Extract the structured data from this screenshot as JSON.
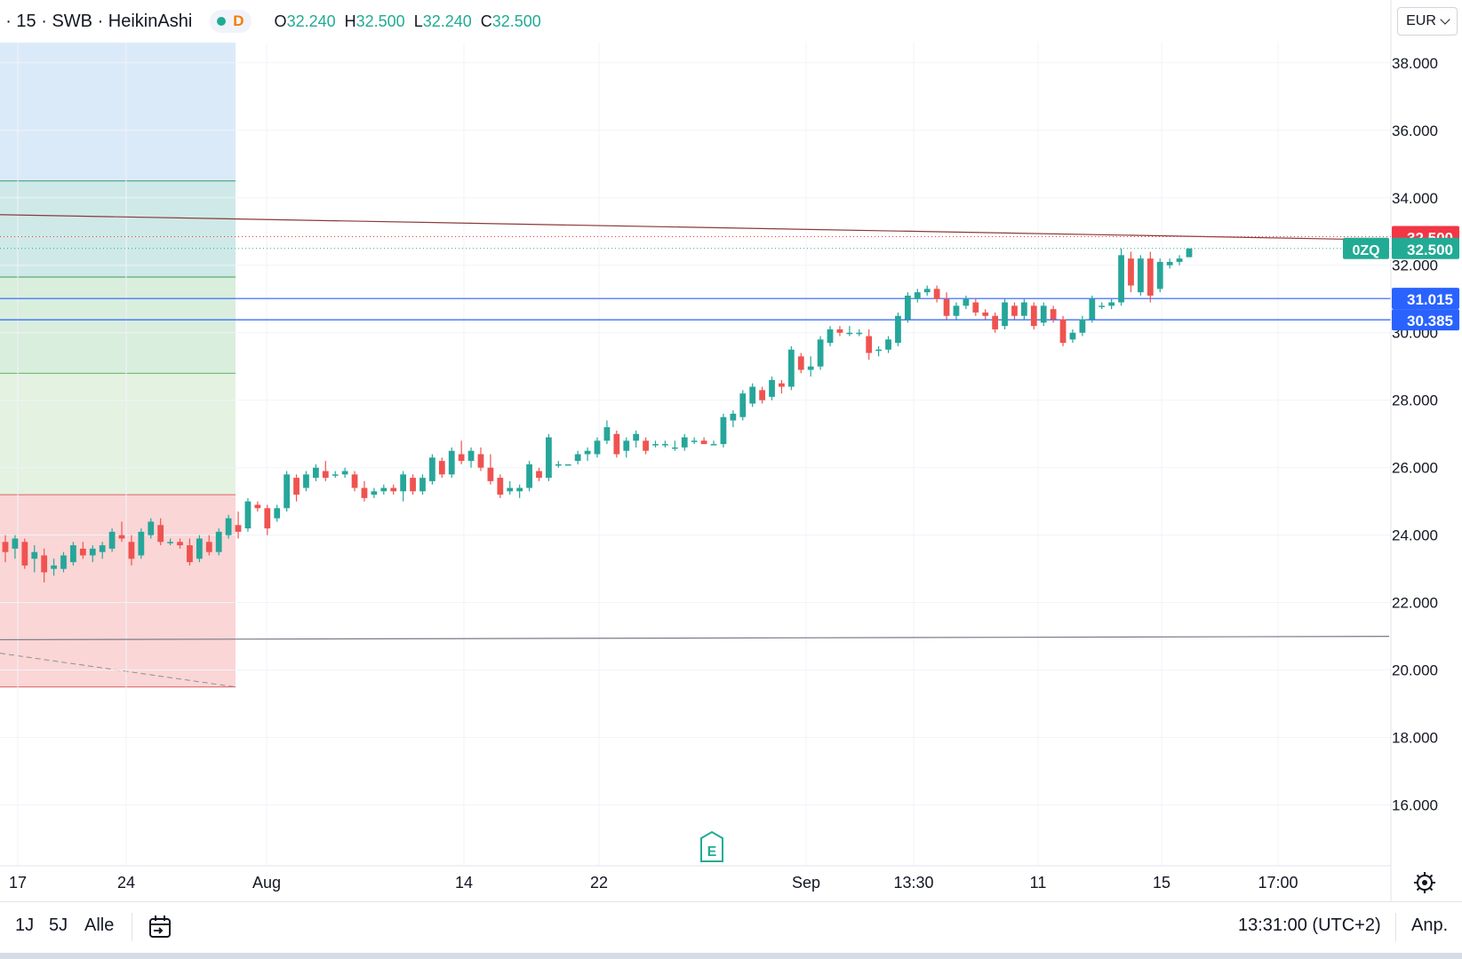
{
  "header": {
    "symbol": ") · 15 · SWB · HeikinAshi",
    "session_letter": "D",
    "ohlc": [
      {
        "k": "O",
        "v": "32.240"
      },
      {
        "k": "H",
        "v": "32.500"
      },
      {
        "k": "L",
        "v": "32.240"
      },
      {
        "k": "C",
        "v": "32.500"
      }
    ],
    "currency": "EUR"
  },
  "bottom": {
    "ranges": [
      "1J",
      "5J",
      "Alle"
    ],
    "clock": "13:31:00 (UTC+2)",
    "auto_label": "Anp."
  },
  "colors": {
    "up": "#26a69a",
    "down": "#ef5350",
    "blue_line": "#2962ff",
    "red_badge": "#f23645",
    "teal_badge": "#22ab94"
  },
  "chart_data": {
    "type": "candlestick",
    "y_ticks": [
      "16.000",
      "18.000",
      "20.000",
      "22.000",
      "24.000",
      "26.000",
      "28.000",
      "30.000",
      "32.000",
      "34.000",
      "36.000",
      "38.000"
    ],
    "ylim": [
      14.2,
      38.6
    ],
    "x_ticks": [
      "17",
      "24",
      "Aug",
      "14",
      "22",
      "Sep",
      "13:30",
      "11",
      "15",
      "17:00"
    ],
    "grid": true,
    "price_labels": [
      {
        "text": "32.500",
        "value": 32.5,
        "style": "red"
      },
      {
        "text": "32.500",
        "value": 32.5,
        "style": "teal",
        "tag": "0ZQ"
      },
      {
        "text": "31.015",
        "value": 31.015,
        "style": "blue"
      },
      {
        "text": "30.385",
        "value": 30.385,
        "style": "blue"
      }
    ],
    "horizontal_lines": [
      31.015,
      30.385
    ],
    "trend_lines": [
      {
        "from": 33.5,
        "to": 32.75,
        "style": "red"
      },
      {
        "from": 20.9,
        "to": 21.0,
        "style": "grey"
      }
    ],
    "fib_zones": [
      {
        "from": 38.6,
        "to": 34.5,
        "color": "#dbeaf8"
      },
      {
        "from": 34.5,
        "to": 31.65,
        "color": "#cfe9e8"
      },
      {
        "from": 31.65,
        "to": 28.8,
        "color": "#d9eedc"
      },
      {
        "from": 28.8,
        "to": 25.2,
        "color": "#e4f2e1"
      },
      {
        "from": 25.2,
        "to": 19.5,
        "color": "#fad6d6"
      }
    ],
    "earnings_marker": "E",
    "candles": [
      [
        23.8,
        24.0,
        23.2,
        23.5
      ],
      [
        23.6,
        24.0,
        23.3,
        23.9
      ],
      [
        23.8,
        23.9,
        23.0,
        23.1
      ],
      [
        23.3,
        23.7,
        22.9,
        23.5
      ],
      [
        23.4,
        23.6,
        22.6,
        22.9
      ],
      [
        23.0,
        23.3,
        22.8,
        23.1
      ],
      [
        23.0,
        23.5,
        22.9,
        23.4
      ],
      [
        23.2,
        23.8,
        23.1,
        23.7
      ],
      [
        23.6,
        23.8,
        23.3,
        23.4
      ],
      [
        23.4,
        23.7,
        23.2,
        23.6
      ],
      [
        23.5,
        23.8,
        23.3,
        23.7
      ],
      [
        23.6,
        24.2,
        23.5,
        24.1
      ],
      [
        24.0,
        24.4,
        23.8,
        23.9
      ],
      [
        23.8,
        24.0,
        23.1,
        23.3
      ],
      [
        23.4,
        24.2,
        23.3,
        24.1
      ],
      [
        24.0,
        24.5,
        23.9,
        24.4
      ],
      [
        24.3,
        24.5,
        23.7,
        23.8
      ],
      [
        23.8,
        23.9,
        23.7,
        23.8
      ],
      [
        23.8,
        23.9,
        23.6,
        23.7
      ],
      [
        23.7,
        23.9,
        23.1,
        23.2
      ],
      [
        23.3,
        24.0,
        23.2,
        23.9
      ],
      [
        23.8,
        24.0,
        23.4,
        23.5
      ],
      [
        23.5,
        24.2,
        23.4,
        24.1
      ],
      [
        24.0,
        24.6,
        23.9,
        24.5
      ],
      [
        24.3,
        24.7,
        23.9,
        24.1
      ],
      [
        24.2,
        25.1,
        24.1,
        25.0
      ],
      [
        24.9,
        25.0,
        24.7,
        24.8
      ],
      [
        24.8,
        24.9,
        24.0,
        24.2
      ],
      [
        24.5,
        24.9,
        24.4,
        24.8
      ],
      [
        24.8,
        25.9,
        24.7,
        25.8
      ],
      [
        25.7,
        25.8,
        25.0,
        25.2
      ],
      [
        25.4,
        25.9,
        25.3,
        25.8
      ],
      [
        25.7,
        26.1,
        25.6,
        26.0
      ],
      [
        25.9,
        26.2,
        25.6,
        25.7
      ],
      [
        25.8,
        25.9,
        25.7,
        25.8
      ],
      [
        25.8,
        26.0,
        25.7,
        25.9
      ],
      [
        25.8,
        25.9,
        25.3,
        25.4
      ],
      [
        25.4,
        25.6,
        25.0,
        25.1
      ],
      [
        25.2,
        25.4,
        25.1,
        25.3
      ],
      [
        25.3,
        25.5,
        25.2,
        25.4
      ],
      [
        25.4,
        25.5,
        25.2,
        25.3
      ],
      [
        25.3,
        25.9,
        25.0,
        25.8
      ],
      [
        25.7,
        25.8,
        25.2,
        25.3
      ],
      [
        25.3,
        25.8,
        25.2,
        25.7
      ],
      [
        25.6,
        26.4,
        25.5,
        26.3
      ],
      [
        26.2,
        26.3,
        25.7,
        25.8
      ],
      [
        25.8,
        26.6,
        25.7,
        26.5
      ],
      [
        26.4,
        26.8,
        26.1,
        26.2
      ],
      [
        26.2,
        26.6,
        26.0,
        26.5
      ],
      [
        26.4,
        26.6,
        25.9,
        26.0
      ],
      [
        26.0,
        26.4,
        25.5,
        25.6
      ],
      [
        25.7,
        25.8,
        25.1,
        25.2
      ],
      [
        25.3,
        25.6,
        25.2,
        25.4
      ],
      [
        25.3,
        25.5,
        25.1,
        25.4
      ],
      [
        25.4,
        26.2,
        25.3,
        26.1
      ],
      [
        25.9,
        26.0,
        25.6,
        25.7
      ],
      [
        25.7,
        27.0,
        25.6,
        26.9
      ],
      [
        26.1,
        26.2,
        26.0,
        26.1
      ],
      [
        26.1,
        26.1,
        26.1,
        26.1
      ],
      [
        26.2,
        26.5,
        26.1,
        26.4
      ],
      [
        26.4,
        26.6,
        26.2,
        26.5
      ],
      [
        26.4,
        26.9,
        26.3,
        26.8
      ],
      [
        26.8,
        27.4,
        26.7,
        27.2
      ],
      [
        27.0,
        27.1,
        26.3,
        26.4
      ],
      [
        26.5,
        26.9,
        26.3,
        26.8
      ],
      [
        26.8,
        27.1,
        26.6,
        27.0
      ],
      [
        26.8,
        26.9,
        26.4,
        26.5
      ],
      [
        26.7,
        26.8,
        26.6,
        26.7
      ],
      [
        26.7,
        26.8,
        26.6,
        26.7
      ],
      [
        26.6,
        26.8,
        26.5,
        26.6
      ],
      [
        26.6,
        27.0,
        26.5,
        26.9
      ],
      [
        26.8,
        26.9,
        26.7,
        26.8
      ],
      [
        26.8,
        26.9,
        26.7,
        26.7
      ],
      [
        26.7,
        26.8,
        26.7,
        26.7
      ],
      [
        26.7,
        27.6,
        26.6,
        27.5
      ],
      [
        27.4,
        27.7,
        27.2,
        27.6
      ],
      [
        27.5,
        28.3,
        27.4,
        28.2
      ],
      [
        27.9,
        28.5,
        27.8,
        28.4
      ],
      [
        28.3,
        28.4,
        27.9,
        28.0
      ],
      [
        28.1,
        28.7,
        28.0,
        28.6
      ],
      [
        28.5,
        28.6,
        28.2,
        28.4
      ],
      [
        28.4,
        29.6,
        28.3,
        29.5
      ],
      [
        29.3,
        29.4,
        28.8,
        28.9
      ],
      [
        28.9,
        29.3,
        28.7,
        29.0
      ],
      [
        29.0,
        29.9,
        28.9,
        29.8
      ],
      [
        29.7,
        30.2,
        29.6,
        30.1
      ],
      [
        30.1,
        30.2,
        29.9,
        30.0
      ],
      [
        30.0,
        30.2,
        29.9,
        30.0
      ],
      [
        30.0,
        30.1,
        29.9,
        30.0
      ],
      [
        29.9,
        30.1,
        29.2,
        29.4
      ],
      [
        29.5,
        29.6,
        29.3,
        29.5
      ],
      [
        29.5,
        29.9,
        29.4,
        29.8
      ],
      [
        29.7,
        30.6,
        29.6,
        30.5
      ],
      [
        30.4,
        31.2,
        30.3,
        31.1
      ],
      [
        31.0,
        31.3,
        30.9,
        31.2
      ],
      [
        31.2,
        31.4,
        31.1,
        31.3
      ],
      [
        31.3,
        31.4,
        30.9,
        31.0
      ],
      [
        31.0,
        31.2,
        30.4,
        30.5
      ],
      [
        30.5,
        30.9,
        30.4,
        30.8
      ],
      [
        30.8,
        31.1,
        30.7,
        31.0
      ],
      [
        30.9,
        31.0,
        30.5,
        30.6
      ],
      [
        30.6,
        30.7,
        30.4,
        30.5
      ],
      [
        30.5,
        30.6,
        30.0,
        30.1
      ],
      [
        30.2,
        31.0,
        30.1,
        30.9
      ],
      [
        30.8,
        30.9,
        30.4,
        30.5
      ],
      [
        30.5,
        31.0,
        30.4,
        30.9
      ],
      [
        30.8,
        30.9,
        30.1,
        30.2
      ],
      [
        30.3,
        30.9,
        30.2,
        30.8
      ],
      [
        30.7,
        30.8,
        30.3,
        30.4
      ],
      [
        30.4,
        30.5,
        29.6,
        29.7
      ],
      [
        29.8,
        30.1,
        29.7,
        30.0
      ],
      [
        30.0,
        30.5,
        29.9,
        30.4
      ],
      [
        30.4,
        31.1,
        30.3,
        31.0
      ],
      [
        30.8,
        30.9,
        30.7,
        30.8
      ],
      [
        30.8,
        31.0,
        30.7,
        30.9
      ],
      [
        30.9,
        32.5,
        30.8,
        32.3
      ],
      [
        32.2,
        32.4,
        31.2,
        31.4
      ],
      [
        31.2,
        32.3,
        31.1,
        32.2
      ],
      [
        32.2,
        32.4,
        30.9,
        31.1
      ],
      [
        31.3,
        32.2,
        31.2,
        32.1
      ],
      [
        32.0,
        32.2,
        31.9,
        32.1
      ],
      [
        32.1,
        32.3,
        32.0,
        32.2
      ],
      [
        32.24,
        32.5,
        32.24,
        32.5
      ]
    ]
  }
}
